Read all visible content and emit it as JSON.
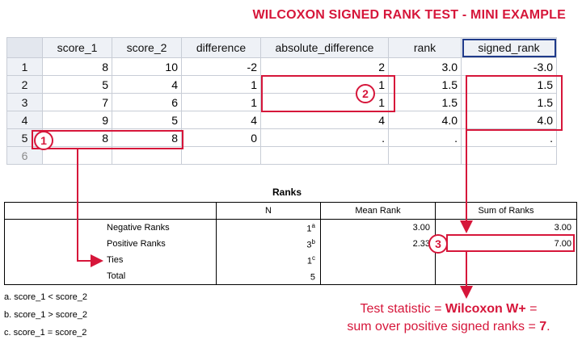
{
  "title": "WILCOXON SIGNED RANK TEST - MINI EXAMPLE",
  "data_view": {
    "columns": [
      "score_1",
      "score_2",
      "difference",
      "absolute_difference",
      "rank",
      "signed_rank"
    ],
    "selected_column": "signed_rank",
    "rows": [
      {
        "num": "1",
        "cells": [
          "8",
          "10",
          "-2",
          "2",
          "3.0",
          "-3.0"
        ]
      },
      {
        "num": "2",
        "cells": [
          "5",
          "4",
          "1",
          "1",
          "1.5",
          "1.5"
        ]
      },
      {
        "num": "3",
        "cells": [
          "7",
          "6",
          "1",
          "1",
          "1.5",
          "1.5"
        ]
      },
      {
        "num": "4",
        "cells": [
          "9",
          "5",
          "4",
          "4",
          "4.0",
          "4.0"
        ]
      },
      {
        "num": "5",
        "cells": [
          "8",
          "8",
          "0",
          ".",
          ".",
          "."
        ]
      },
      {
        "num": "6",
        "cells": [
          "",
          "",
          "",
          "",
          "",
          ""
        ]
      }
    ]
  },
  "output": {
    "table_title": "Ranks",
    "headers": [
      "N",
      "Mean Rank",
      "Sum of Ranks"
    ],
    "rows": [
      {
        "label": "Negative Ranks",
        "n": "1",
        "sup": "a",
        "mean_rank": "3.00",
        "sum_of_ranks": "3.00"
      },
      {
        "label": "Positive Ranks",
        "n": "3",
        "sup": "b",
        "mean_rank": "2.33",
        "sum_of_ranks": "7.00"
      },
      {
        "label": "Ties",
        "n": "1",
        "sup": "c",
        "mean_rank": "",
        "sum_of_ranks": ""
      },
      {
        "label": "Total",
        "n": "5",
        "sup": "",
        "mean_rank": "",
        "sum_of_ranks": ""
      }
    ],
    "footnotes": [
      "a. score_1 < score_2",
      "b. score_1 > score_2",
      "c. score_1 = score_2"
    ]
  },
  "annotations": {
    "badge_1": "1",
    "badge_2": "2",
    "badge_3": "3",
    "caption_part1": "Test statistic = ",
    "caption_bold": "Wilcoxon W+",
    "caption_part2": " =",
    "caption_line2_part1": "sum over positive signed ranks = ",
    "caption_line2_bold": "7",
    "caption_line2_end": ".",
    "accent_color": "#d6163a"
  }
}
